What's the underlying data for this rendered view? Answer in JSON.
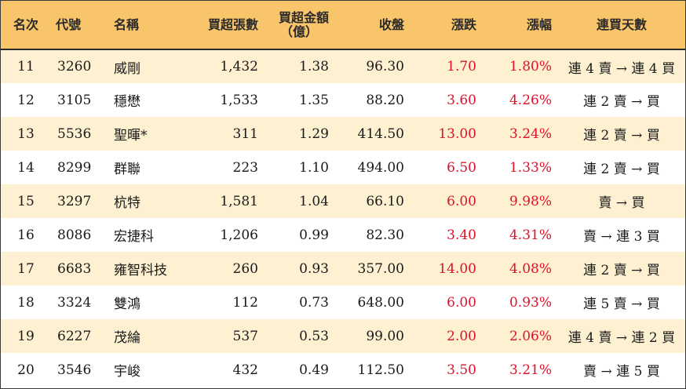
{
  "headers": {
    "rank": "名次",
    "code": "代號",
    "name": "名稱",
    "net_lots": "買超張數",
    "net_amount_line1": "買超金額",
    "net_amount_line2": "（億）",
    "close": "收盤",
    "change": "漲跌",
    "change_pct": "漲幅",
    "streak": "連買天數"
  },
  "colors": {
    "header_bg": "#f8c56a",
    "odd_row_bg": "#fdf1d2",
    "even_row_bg": "#ffffff",
    "up_red": "#e0102a"
  },
  "rows": [
    {
      "rank": "11",
      "code": "3260",
      "name": "威剛",
      "net_lots": "1,432",
      "net_amount": "1.38",
      "close": "96.30",
      "change": "1.70",
      "change_pct": "1.80%",
      "streak": "連 4 賣 → 連 4 買"
    },
    {
      "rank": "12",
      "code": "3105",
      "name": "穩懋",
      "net_lots": "1,533",
      "net_amount": "1.35",
      "close": "88.20",
      "change": "3.60",
      "change_pct": "4.26%",
      "streak": "連 2 賣 → 買"
    },
    {
      "rank": "13",
      "code": "5536",
      "name": "聖暉*",
      "net_lots": "311",
      "net_amount": "1.29",
      "close": "414.50",
      "change": "13.00",
      "change_pct": "3.24%",
      "streak": "連 2 賣 → 買"
    },
    {
      "rank": "14",
      "code": "8299",
      "name": "群聯",
      "net_lots": "223",
      "net_amount": "1.10",
      "close": "494.00",
      "change": "6.50",
      "change_pct": "1.33%",
      "streak": "連 2 賣 → 買"
    },
    {
      "rank": "15",
      "code": "3297",
      "name": "杭特",
      "net_lots": "1,581",
      "net_amount": "1.04",
      "close": "66.10",
      "change": "6.00",
      "change_pct": "9.98%",
      "streak": "賣 → 買"
    },
    {
      "rank": "16",
      "code": "8086",
      "name": "宏捷科",
      "net_lots": "1,206",
      "net_amount": "0.99",
      "close": "82.30",
      "change": "3.40",
      "change_pct": "4.31%",
      "streak": "賣 → 連 3 買"
    },
    {
      "rank": "17",
      "code": "6683",
      "name": "雍智科技",
      "net_lots": "260",
      "net_amount": "0.93",
      "close": "357.00",
      "change": "14.00",
      "change_pct": "4.08%",
      "streak": "連 2 賣 → 買"
    },
    {
      "rank": "18",
      "code": "3324",
      "name": "雙鴻",
      "net_lots": "112",
      "net_amount": "0.73",
      "close": "648.00",
      "change": "6.00",
      "change_pct": "0.93%",
      "streak": "連 5 賣 → 買"
    },
    {
      "rank": "19",
      "code": "6227",
      "name": "茂綸",
      "net_lots": "537",
      "net_amount": "0.53",
      "close": "99.00",
      "change": "2.00",
      "change_pct": "2.06%",
      "streak": "連 4 賣 → 連 2 買"
    },
    {
      "rank": "20",
      "code": "3546",
      "name": "宇峻",
      "net_lots": "432",
      "net_amount": "0.49",
      "close": "112.50",
      "change": "3.50",
      "change_pct": "3.21%",
      "streak": "賣 → 連 5 買"
    }
  ]
}
